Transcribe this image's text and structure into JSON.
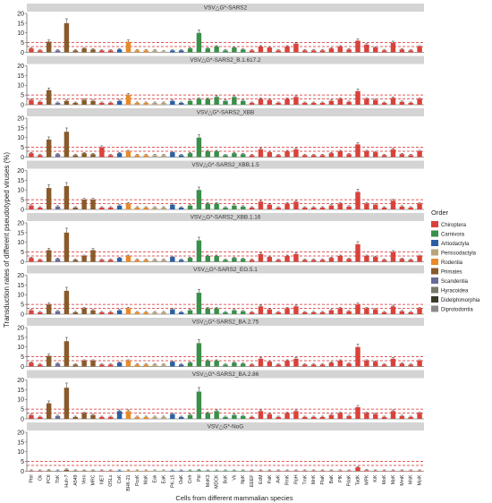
{
  "chart_data": {
    "type": "bar",
    "ylabel": "Transduction rates of different pseudotyped viruses (%)",
    "xlabel": "Cells from different mammalian species",
    "categories": [
      "Ptel",
      "Ok",
      "PCtl",
      "TbK",
      "Huh-7",
      "A549",
      "Vero",
      "MRC",
      "NET",
      "OSLu",
      "CsK",
      "BHK-21",
      "PcoK",
      "MaK",
      "Eak",
      "EaK",
      "PK-15",
      "OaK",
      "Cnfr",
      "Pbl",
      "MoK3",
      "MDCK",
      "BoK",
      "Vk",
      "NpK",
      "EEEF",
      "EcM",
      "PaK",
      "AvK",
      "RmK",
      "RpH",
      "TmK",
      "MnK",
      "PlaK",
      "BaK",
      "PfK",
      "PdaK",
      "TadK",
      "MPK",
      "KiK",
      "MoK",
      "MpK",
      "MmK",
      "MsK",
      "MpiK"
    ],
    "category_orders": [
      "Chiroptera",
      "Chiroptera",
      "Primates",
      "Scandentia",
      "Primates",
      "Primates",
      "Primates",
      "Primates",
      "Chiroptera",
      "Chiroptera",
      "Artiodactyla",
      "Rodentia",
      "Rodentia",
      "Rodentia",
      "Perissodactyla",
      "Perissodactyla",
      "Artiodactyla",
      "Artiodactyla",
      "Carnivora",
      "Carnivora",
      "Carnivora",
      "Carnivora",
      "Carnivora",
      "Carnivora",
      "Carnivora",
      "Chiroptera",
      "Chiroptera",
      "Chiroptera",
      "Chiroptera",
      "Chiroptera",
      "Chiroptera",
      "Chiroptera",
      "Chiroptera",
      "Chiroptera",
      "Chiroptera",
      "Chiroptera",
      "Chiroptera",
      "Chiroptera",
      "Chiroptera",
      "Chiroptera",
      "Chiroptera",
      "Chiroptera",
      "Chiroptera",
      "Chiroptera",
      "Chiroptera"
    ],
    "ylim": [
      0,
      20
    ],
    "yticks": [
      0,
      5,
      10,
      15,
      20
    ],
    "ref_lines": [
      5,
      3
    ],
    "series": [
      {
        "name": "VSV△G*-SARS2",
        "values": [
          2,
          1,
          5.5,
          1,
          15,
          1,
          2,
          1.5,
          1,
          1,
          1.5,
          5.5,
          1,
          1,
          1,
          0.5,
          1,
          1,
          2,
          10,
          2,
          3,
          1,
          2.5,
          1.5,
          1,
          3,
          2.5,
          1,
          3,
          4.5,
          1,
          1,
          1,
          2,
          3,
          1.5,
          6,
          4,
          2.5,
          1,
          5,
          1.5,
          1,
          3
        ]
      },
      {
        "name": "VSV△G*-SARS2_B.1.617.2",
        "values": [
          2.5,
          1.5,
          7.5,
          1,
          2,
          1,
          2.5,
          2,
          1,
          1,
          2,
          5,
          1,
          1,
          1,
          1,
          2,
          1,
          2,
          3,
          3,
          4,
          2,
          4,
          2,
          1,
          3,
          2.5,
          1,
          3,
          4,
          1,
          1,
          1,
          2,
          3,
          1.5,
          7,
          3,
          2.5,
          1,
          3.5,
          1.5,
          1,
          3
        ]
      },
      {
        "name": "VSV△G*-SARS2_XBB",
        "values": [
          2,
          1,
          9,
          1.5,
          13,
          1,
          2,
          1.5,
          5,
          1,
          2,
          3,
          1,
          1,
          1,
          1,
          2.5,
          1,
          2,
          10,
          3,
          3,
          1,
          2,
          1.5,
          1,
          4,
          2.5,
          1,
          3,
          4,
          1,
          1,
          1,
          2,
          3,
          1.5,
          6.5,
          3,
          2.5,
          1,
          4,
          1.5,
          1,
          3
        ]
      },
      {
        "name": "VSV△G*-SARS2_XBB.1.5",
        "values": [
          2,
          1,
          11,
          1.5,
          12,
          1,
          5,
          5,
          1,
          1,
          2,
          3,
          1,
          1,
          1,
          1,
          2.5,
          1,
          2,
          10,
          3,
          3,
          1,
          2,
          1.5,
          1,
          4,
          2.5,
          1,
          3,
          4,
          1,
          1,
          1,
          2,
          3,
          1.5,
          9,
          3,
          2.5,
          1,
          4.5,
          1.5,
          1,
          3
        ]
      },
      {
        "name": "VSV△G*-SARS2_XBB.1.16",
        "values": [
          2,
          1,
          6,
          1.5,
          15,
          1,
          3,
          6,
          1,
          1,
          2,
          3,
          1,
          1,
          1,
          1,
          2.5,
          1,
          2,
          11,
          3,
          3,
          1,
          2,
          1.5,
          1,
          4,
          2.5,
          1,
          3,
          4,
          1,
          1,
          1,
          2,
          3,
          1.5,
          9,
          3,
          2.5,
          1,
          5,
          1.5,
          1,
          3
        ]
      },
      {
        "name": "VSV△G*-SARS2_EG.5.1",
        "values": [
          2,
          1,
          5,
          1.5,
          12,
          1,
          3,
          2,
          1,
          1,
          2,
          3,
          1,
          1,
          1,
          1,
          2.5,
          1,
          2,
          11,
          3,
          3,
          1,
          2,
          1.5,
          1,
          4,
          2.5,
          1,
          3,
          4,
          1,
          1,
          1,
          2,
          3,
          1.5,
          5,
          3,
          2.5,
          1,
          4,
          1.5,
          1,
          3
        ]
      },
      {
        "name": "VSV△G*-SARS2_BA.2.75",
        "values": [
          2,
          1,
          5.5,
          1.5,
          13,
          1,
          3,
          3,
          1,
          1,
          2,
          3,
          1,
          1,
          1,
          1,
          2.5,
          1,
          2,
          12,
          3,
          3,
          1,
          2,
          1.5,
          1,
          4,
          2.5,
          1,
          3,
          4,
          1,
          1,
          1,
          2,
          3,
          1.5,
          10,
          3,
          2.5,
          1,
          4,
          1.5,
          1,
          3
        ]
      },
      {
        "name": "VSV△G*-SARS2_BA.2.86",
        "values": [
          2,
          1,
          8,
          1.5,
          16,
          1,
          3,
          2,
          1,
          1,
          4,
          4,
          1,
          1,
          1,
          1,
          2.5,
          1,
          2,
          14,
          3,
          4,
          1,
          2,
          1.5,
          1,
          4,
          2.5,
          1,
          3,
          4,
          1,
          1,
          1,
          2,
          3,
          1.5,
          6,
          3,
          2.5,
          1,
          4,
          1.5,
          1,
          3
        ]
      },
      {
        "name": "VSV△G*-NoG",
        "values": [
          0.3,
          0.3,
          0.4,
          0.3,
          0.8,
          0.3,
          0.3,
          0.3,
          0.3,
          0.3,
          0.3,
          0.3,
          0.3,
          0.3,
          0.3,
          0.3,
          0.3,
          0.3,
          0.3,
          0.5,
          0.3,
          0.3,
          0.3,
          0.3,
          0.3,
          0.3,
          0.3,
          0.3,
          0.3,
          0.3,
          0.3,
          0.3,
          0.3,
          0.3,
          0.3,
          0.3,
          0.3,
          2,
          0.5,
          0.3,
          0.3,
          0.3,
          0.3,
          0.3,
          0.3
        ]
      }
    ],
    "legend": {
      "title": "Order",
      "placement": "right",
      "entries": [
        {
          "name": "Chiroptera",
          "color": "#d9423a"
        },
        {
          "name": "Carnivora",
          "color": "#3a8f4a"
        },
        {
          "name": "Artiodactyla",
          "color": "#2b5fa3"
        },
        {
          "name": "Perissodactyla",
          "color": "#b9a37a"
        },
        {
          "name": "Rodentia",
          "color": "#e88a2a"
        },
        {
          "name": "Primates",
          "color": "#8a5a2a"
        },
        {
          "name": "Scandentia",
          "color": "#6b6b9a"
        },
        {
          "name": "Hyracoidea",
          "color": "#7a7a6a"
        },
        {
          "name": "Didelphimorphia",
          "color": "#3a3a2a"
        },
        {
          "name": "Diprotodontia",
          "color": "#8a8a8a"
        }
      ]
    }
  }
}
